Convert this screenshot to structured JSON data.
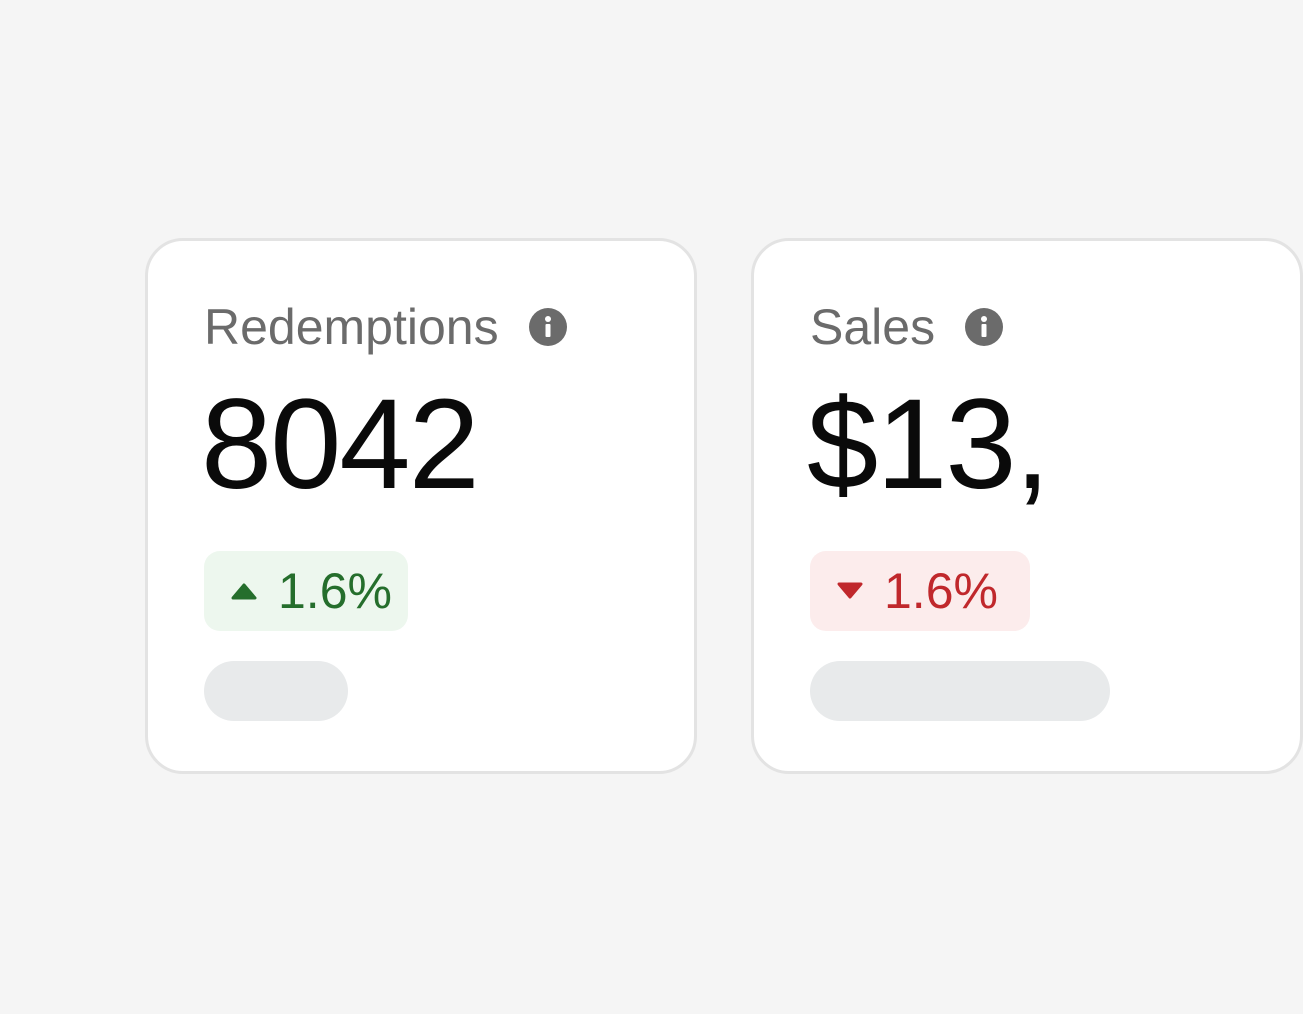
{
  "cards": [
    {
      "title": "Redemptions",
      "value": "8042",
      "change": {
        "direction": "up",
        "text": "1.6%",
        "color": "#256e2c",
        "background": "#edf7ee"
      },
      "info_icon": "info-icon"
    },
    {
      "title": "Sales",
      "value": "$13,",
      "change": {
        "direction": "down",
        "text": "1.6%",
        "color": "#c0282c",
        "background": "#fcecec"
      },
      "info_icon": "info-icon"
    }
  ],
  "colors": {
    "page_background": "#f5f5f5",
    "card_background": "#ffffff",
    "card_border": "#e3e3e3",
    "title_text": "#6b6b6b",
    "value_text": "#0a0a0a",
    "placeholder_pill": "#e8eaeb"
  }
}
